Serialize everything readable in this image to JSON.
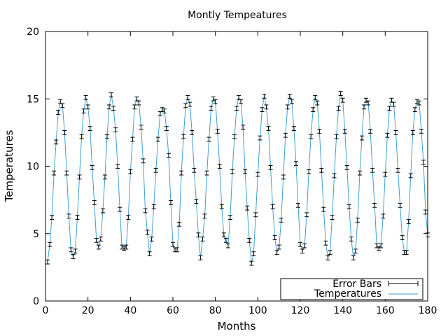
{
  "chart_data": {
    "type": "line",
    "title": "Montly Tempeatures",
    "xlabel": "Months",
    "ylabel": "Temperatures",
    "xlim": [
      0,
      180
    ],
    "ylim": [
      0,
      20
    ],
    "x_ticks": [
      0,
      20,
      40,
      60,
      80,
      100,
      120,
      140,
      160,
      180
    ],
    "y_ticks": [
      0,
      5,
      10,
      15,
      20
    ],
    "grid": false,
    "legend_position": "bottom-right",
    "series": [
      {
        "name": "Error Bars",
        "style": "errorbars",
        "color": "#000000",
        "error": 0.15,
        "x": [
          1,
          2,
          3,
          4,
          5,
          6,
          7,
          8,
          9,
          10,
          11,
          12,
          13,
          14,
          15,
          16,
          17,
          18,
          19,
          20,
          21,
          22,
          23,
          24,
          25,
          26,
          27,
          28,
          29,
          30,
          31,
          32,
          33,
          34,
          35,
          36,
          37,
          38,
          39,
          40,
          41,
          42,
          43,
          44,
          45,
          46,
          47,
          48,
          49,
          50,
          51,
          52,
          53,
          54,
          55,
          56,
          57,
          58,
          59,
          60,
          61,
          62,
          63,
          64,
          65,
          66,
          67,
          68,
          69,
          70,
          71,
          72,
          73,
          74,
          75,
          76,
          77,
          78,
          79,
          80,
          81,
          82,
          83,
          84,
          85,
          86,
          87,
          88,
          89,
          90,
          91,
          92,
          93,
          94,
          95,
          96,
          97,
          98,
          99,
          100,
          101,
          102,
          103,
          104,
          105,
          106,
          107,
          108,
          109,
          110,
          111,
          112,
          113,
          114,
          115,
          116,
          117,
          118,
          119,
          120,
          121,
          122,
          123,
          124,
          125,
          126,
          127,
          128,
          129,
          130,
          131,
          132,
          133,
          134,
          135,
          136,
          137,
          138,
          139,
          140,
          141,
          142,
          143,
          144,
          145,
          146,
          147,
          148,
          149,
          150,
          151,
          152,
          153,
          154,
          155,
          156,
          157,
          158,
          159,
          160,
          161,
          162,
          163,
          164,
          165,
          166,
          167,
          168,
          169,
          170,
          171,
          172,
          173,
          174,
          175,
          176,
          177,
          178,
          179,
          180
        ],
        "values": [
          2.9,
          4.2,
          6.2,
          9.5,
          11.8,
          14.0,
          14.8,
          14.5,
          12.5,
          9.5,
          6.3,
          3.8,
          3.3,
          3.7,
          6.2,
          9.2,
          12.2,
          14.1,
          15.1,
          14.4,
          12.8,
          9.9,
          7.3,
          4.5,
          4.0,
          4.6,
          6.7,
          9.2,
          12.2,
          14.4,
          15.3,
          14.3,
          12.7,
          10.0,
          6.8,
          4.0,
          3.9,
          4.0,
          6.2,
          9.6,
          12.0,
          14.4,
          15.0,
          14.7,
          12.9,
          10.4,
          6.7,
          5.1,
          3.5,
          4.6,
          7.0,
          9.7,
          12.0,
          13.9,
          14.2,
          14.1,
          12.8,
          10.8,
          7.3,
          4.2,
          3.8,
          3.8,
          5.7,
          9.5,
          12.2,
          14.5,
          15.1,
          14.6,
          12.5,
          9.7,
          7.4,
          4.9,
          3.2,
          4.6,
          6.3,
          9.5,
          12.0,
          14.3,
          15.0,
          14.8,
          12.6,
          10.0,
          7.0,
          4.9,
          4.5,
          4.1,
          6.2,
          9.6,
          12.2,
          14.3,
          15.1,
          14.8,
          12.9,
          9.6,
          6.9,
          4.5,
          2.8,
          3.5,
          6.4,
          9.4,
          12.1,
          14.2,
          15.2,
          14.4,
          12.8,
          9.9,
          7.0,
          4.7,
          3.6,
          4.0,
          6.0,
          9.2,
          12.3,
          14.4,
          15.2,
          14.8,
          12.8,
          10.2,
          7.1,
          4.2,
          3.7,
          4.1,
          6.4,
          9.6,
          12.2,
          14.2,
          15.1,
          14.7,
          12.6,
          9.7,
          6.8,
          4.3,
          3.2,
          3.6,
          6.2,
          9.3,
          12.2,
          14.3,
          15.4,
          14.9,
          12.6,
          9.9,
          7.0,
          4.6,
          3.2,
          3.7,
          6.0,
          9.5,
          12.1,
          14.4,
          14.9,
          14.7,
          12.6,
          9.7,
          7.1,
          4.1,
          3.9,
          4.1,
          6.3,
          9.4,
          12.3,
          14.3,
          14.9,
          14.6,
          12.5,
          9.7,
          7.1,
          4.7,
          3.6,
          3.6,
          5.9,
          9.3,
          12.5,
          14.2,
          14.8,
          14.7,
          12.6,
          10.3,
          6.6,
          4.9
        ]
      },
      {
        "name": "Temperatures",
        "style": "line",
        "color": "#3d9fd1",
        "x": [
          1,
          2,
          3,
          4,
          5,
          6,
          7,
          8,
          9,
          10,
          11,
          12,
          13,
          14,
          15,
          16,
          17,
          18,
          19,
          20,
          21,
          22,
          23,
          24,
          25,
          26,
          27,
          28,
          29,
          30,
          31,
          32,
          33,
          34,
          35,
          36,
          37,
          38,
          39,
          40,
          41,
          42,
          43,
          44,
          45,
          46,
          47,
          48,
          49,
          50,
          51,
          52,
          53,
          54,
          55,
          56,
          57,
          58,
          59,
          60,
          61,
          62,
          63,
          64,
          65,
          66,
          67,
          68,
          69,
          70,
          71,
          72,
          73,
          74,
          75,
          76,
          77,
          78,
          79,
          80,
          81,
          82,
          83,
          84,
          85,
          86,
          87,
          88,
          89,
          90,
          91,
          92,
          93,
          94,
          95,
          96,
          97,
          98,
          99,
          100,
          101,
          102,
          103,
          104,
          105,
          106,
          107,
          108,
          109,
          110,
          111,
          112,
          113,
          114,
          115,
          116,
          117,
          118,
          119,
          120,
          121,
          122,
          123,
          124,
          125,
          126,
          127,
          128,
          129,
          130,
          131,
          132,
          133,
          134,
          135,
          136,
          137,
          138,
          139,
          140,
          141,
          142,
          143,
          144,
          145,
          146,
          147,
          148,
          149,
          150,
          151,
          152,
          153,
          154,
          155,
          156,
          157,
          158,
          159,
          160,
          161,
          162,
          163,
          164,
          165,
          166,
          167,
          168,
          169,
          170,
          171,
          172,
          173,
          174,
          175,
          176,
          177,
          178,
          179,
          180
        ],
        "values": [
          2.9,
          4.2,
          6.2,
          9.5,
          11.8,
          14.0,
          14.8,
          14.5,
          12.5,
          9.5,
          6.3,
          3.8,
          3.3,
          3.7,
          6.2,
          9.2,
          12.2,
          14.1,
          15.1,
          14.4,
          12.8,
          9.9,
          7.3,
          4.5,
          4.0,
          4.6,
          6.7,
          9.2,
          12.2,
          14.4,
          15.3,
          14.3,
          12.7,
          10.0,
          6.8,
          4.0,
          3.9,
          4.0,
          6.2,
          9.6,
          12.0,
          14.4,
          15.0,
          14.7,
          12.9,
          10.4,
          6.7,
          5.1,
          3.5,
          4.6,
          7.0,
          9.7,
          12.0,
          13.9,
          14.2,
          14.1,
          12.8,
          10.8,
          7.3,
          4.2,
          3.8,
          3.8,
          5.7,
          9.5,
          12.2,
          14.5,
          15.1,
          14.6,
          12.5,
          9.7,
          7.4,
          4.9,
          3.2,
          4.6,
          6.3,
          9.5,
          12.0,
          14.3,
          15.0,
          14.8,
          12.6,
          10.0,
          7.0,
          4.9,
          4.5,
          4.1,
          6.2,
          9.6,
          12.2,
          14.3,
          15.1,
          14.8,
          12.9,
          9.6,
          6.9,
          4.5,
          2.8,
          3.5,
          6.4,
          9.4,
          12.1,
          14.2,
          15.2,
          14.4,
          12.8,
          9.9,
          7.0,
          4.7,
          3.6,
          4.0,
          6.0,
          9.2,
          12.3,
          14.4,
          15.2,
          14.8,
          12.8,
          10.2,
          7.1,
          4.2,
          3.7,
          4.1,
          6.4,
          9.6,
          12.2,
          14.2,
          15.1,
          14.7,
          12.6,
          9.7,
          6.8,
          4.3,
          3.2,
          3.6,
          6.2,
          9.3,
          12.2,
          14.3,
          15.4,
          14.9,
          12.6,
          9.9,
          7.0,
          4.6,
          3.2,
          3.7,
          6.0,
          9.5,
          12.1,
          14.4,
          14.9,
          14.7,
          12.6,
          9.7,
          7.1,
          4.1,
          3.9,
          4.1,
          6.3,
          9.4,
          12.3,
          14.3,
          14.9,
          14.6,
          12.5,
          9.7,
          7.1,
          4.7,
          3.6,
          3.6,
          5.9,
          9.3,
          12.5,
          14.2,
          14.8,
          14.7,
          12.6,
          10.3,
          6.6,
          4.9
        ]
      }
    ]
  }
}
